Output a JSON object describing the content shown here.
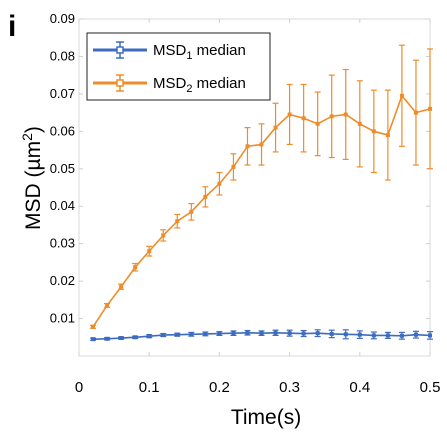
{
  "panel_label": "i",
  "chart_data": {
    "type": "line",
    "xlabel": "Time(s)",
    "ylabel": "MSD (µm²)",
    "ylabel_prefix": "MSD (µm",
    "ylabel_sup": "2",
    "ylabel_suffix": ")",
    "xlim": [
      0,
      0.5
    ],
    "ylim": [
      0,
      0.09
    ],
    "x_ticks": [
      "0",
      "0.1",
      "0.2",
      "0.3",
      "0.4",
      "0.5"
    ],
    "y_ticks": [
      "0.01",
      "0.02",
      "0.03",
      "0.04",
      "0.05",
      "0.06",
      "0.07",
      "0.08",
      "0.09"
    ],
    "legend_position": "top-left",
    "x": [
      0.02,
      0.04,
      0.06,
      0.08,
      0.1,
      0.12,
      0.14,
      0.16,
      0.18,
      0.2,
      0.22,
      0.24,
      0.26,
      0.28,
      0.3,
      0.32,
      0.34,
      0.36,
      0.38,
      0.4,
      0.42,
      0.44,
      0.46,
      0.48,
      0.5
    ],
    "series": [
      {
        "name": "MSD1 median",
        "legend": {
          "prefix": "MSD",
          "sub": "1",
          "suffix": " median"
        },
        "color": "#3d6bbf",
        "marker": "square",
        "values": [
          0.0045,
          0.0046,
          0.0048,
          0.005,
          0.0053,
          0.0056,
          0.0057,
          0.0058,
          0.0059,
          0.006,
          0.0061,
          0.0062,
          0.0061,
          0.0062,
          0.0061,
          0.006,
          0.0061,
          0.0059,
          0.0058,
          0.0057,
          0.0055,
          0.0055,
          0.0054,
          0.0057,
          0.0055
        ],
        "errors": [
          0.0003,
          0.0003,
          0.0003,
          0.0003,
          0.0004,
          0.0004,
          0.0004,
          0.0005,
          0.0005,
          0.0005,
          0.0006,
          0.0006,
          0.0006,
          0.0007,
          0.0008,
          0.0008,
          0.0009,
          0.001,
          0.0012,
          0.001,
          0.0009,
          0.0008,
          0.0009,
          0.0009,
          0.001
        ]
      },
      {
        "name": "MSD2 median",
        "legend": {
          "prefix": "MSD",
          "sub": "2",
          "suffix": " median"
        },
        "color": "#ef8c2a",
        "marker": "square",
        "values": [
          0.0078,
          0.0135,
          0.0185,
          0.0237,
          0.028,
          0.0322,
          0.036,
          0.0385,
          0.0425,
          0.046,
          0.0505,
          0.056,
          0.0565,
          0.061,
          0.0645,
          0.0635,
          0.062,
          0.064,
          0.0645,
          0.062,
          0.06,
          0.059,
          0.0695,
          0.065,
          0.066
        ],
        "errors": [
          0.0004,
          0.0005,
          0.0007,
          0.001,
          0.0013,
          0.0015,
          0.0018,
          0.0022,
          0.0027,
          0.003,
          0.0035,
          0.005,
          0.0055,
          0.0065,
          0.008,
          0.009,
          0.0085,
          0.011,
          0.012,
          0.0115,
          0.011,
          0.012,
          0.0135,
          0.014,
          0.016
        ]
      }
    ]
  }
}
